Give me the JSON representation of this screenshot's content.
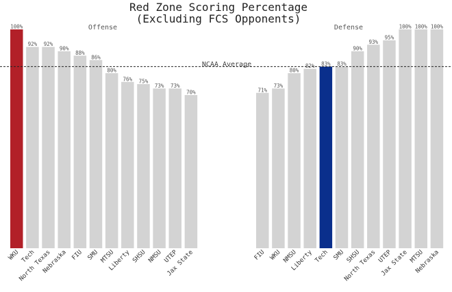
{
  "chart_data": {
    "type": "bar",
    "title": "Red Zone Scoring Percentage",
    "subtitle": "(Excluding FCS Opponents)",
    "reference_line": {
      "label": "NCAA Average",
      "value": 0.83
    },
    "ylim": [
      0,
      1.0
    ],
    "grid": false,
    "panels": [
      {
        "name": "Offense",
        "categories": [
          "WKU",
          "Tech",
          "North Texas",
          "Nebraska",
          "FIU",
          "SMU",
          "MTSU",
          "Liberty",
          "SHSU",
          "NMSU",
          "UTEP",
          "Jax State"
        ],
        "values": [
          1.0,
          0.92,
          0.92,
          0.9,
          0.88,
          0.86,
          0.8,
          0.76,
          0.75,
          0.73,
          0.73,
          0.7
        ],
        "labels": [
          "100%",
          "92%",
          "92%",
          "90%",
          "88%",
          "86%",
          "80%",
          "76%",
          "75%",
          "73%",
          "73%",
          "70%"
        ],
        "highlight_index": 0,
        "highlight_color": "#b22028"
      },
      {
        "name": "Defense",
        "categories": [
          "FIU",
          "WKU",
          "NMSU",
          "Liberty",
          "Tech",
          "SMU",
          "SHSU",
          "North Texas",
          "UTEP",
          "Jax State",
          "MTSU",
          "Nebraska"
        ],
        "values": [
          0.71,
          0.73,
          0.8,
          0.82,
          0.83,
          0.83,
          0.9,
          0.93,
          0.95,
          1.0,
          1.0,
          1.0
        ],
        "labels": [
          "71%",
          "73%",
          "80%",
          "82%",
          "83%",
          "83%",
          "90%",
          "93%",
          "95%",
          "100%",
          "100%",
          "100%"
        ],
        "highlight_index": 4,
        "highlight_color": "#0a2f8c"
      }
    ],
    "colors": {
      "default_bar": "#d3d3d3",
      "reference_line": "#222222"
    }
  }
}
